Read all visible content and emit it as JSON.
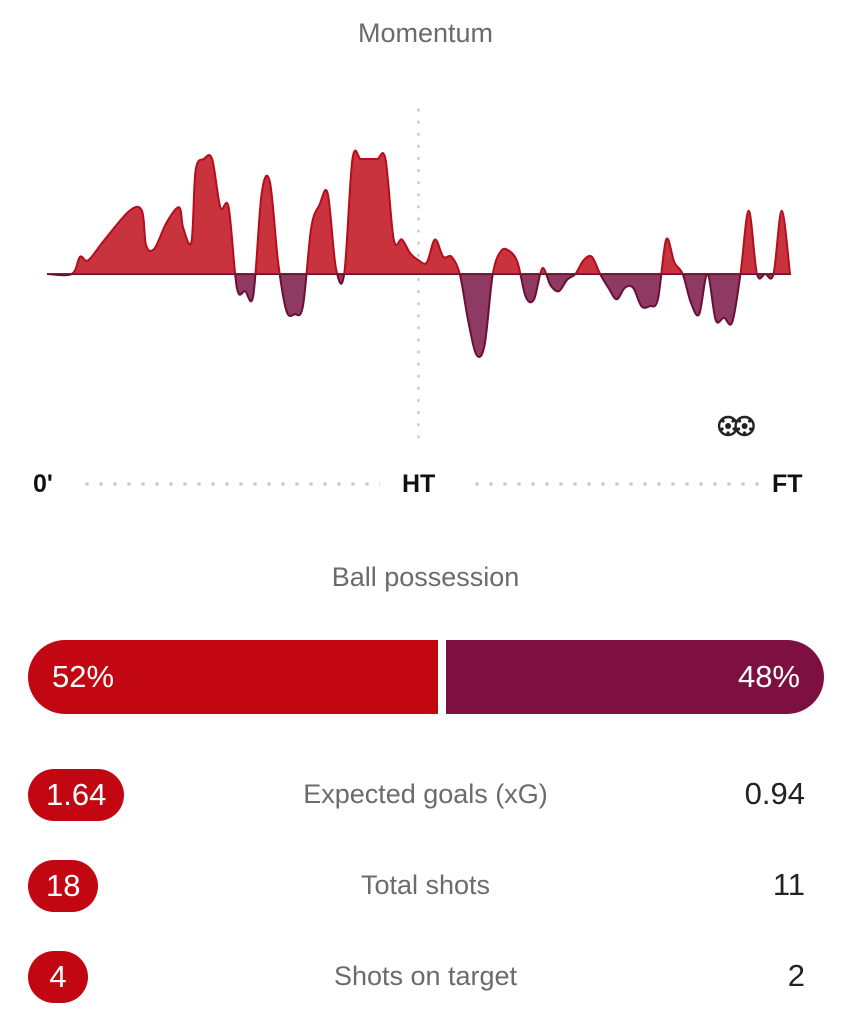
{
  "momentum": {
    "title": "Momentum",
    "axis": {
      "start": "0'",
      "half": "HT",
      "end": "FT"
    },
    "goal_icons": [
      "goal-ball-icon",
      "goal-ball-icon"
    ],
    "colors": {
      "home": "#c9333d",
      "away": "#8e3a63",
      "home_stroke": "#b50d1c",
      "away_stroke": "#6a1038"
    },
    "chart_data": {
      "type": "area",
      "xlabel": "",
      "ylabel": "",
      "x_range": [
        0,
        90
      ],
      "ylim": [
        -100,
        100
      ],
      "x": [
        0,
        3,
        4,
        5,
        7,
        10,
        11.5,
        12,
        13,
        14.5,
        16,
        16.5,
        17.5,
        18,
        19,
        20,
        21,
        22,
        23,
        24,
        25,
        26,
        27,
        28,
        29,
        30,
        31,
        32,
        33,
        34,
        35,
        36,
        37,
        38,
        39,
        40,
        41,
        42,
        43,
        44,
        45,
        46,
        47,
        48,
        49,
        50,
        51,
        52,
        53,
        54,
        55,
        56,
        57,
        58,
        59,
        60,
        61,
        62,
        63,
        64,
        65,
        66,
        67,
        68,
        69,
        70,
        71,
        72,
        73,
        74,
        75,
        76,
        77,
        78,
        79,
        80,
        81,
        82,
        83,
        84,
        85,
        86,
        87,
        88,
        89,
        90
      ],
      "values": [
        0,
        0,
        15,
        12,
        30,
        55,
        55,
        25,
        22,
        45,
        58,
        40,
        28,
        90,
        100,
        100,
        58,
        58,
        -12,
        -15,
        -18,
        70,
        80,
        10,
        -32,
        -35,
        -28,
        40,
        60,
        70,
        5,
        0,
        100,
        100,
        100,
        100,
        100,
        30,
        30,
        18,
        12,
        10,
        30,
        15,
        15,
        0,
        -40,
        -70,
        -62,
        0,
        20,
        20,
        10,
        -20,
        -22,
        5,
        -10,
        -15,
        -5,
        0,
        12,
        15,
        0,
        -12,
        -22,
        -12,
        -12,
        -28,
        -28,
        -22,
        30,
        10,
        0,
        -25,
        -35,
        0,
        -40,
        -38,
        -42,
        0,
        55,
        0,
        0,
        0,
        55,
        0
      ],
      "goal_minutes": [
        82.5,
        84.5
      ]
    }
  },
  "possession": {
    "title": "Ball possession",
    "home": "52%",
    "away": "48%",
    "home_value": 52,
    "away_value": 48,
    "colors": {
      "home": "#c20612",
      "away": "#7d1040"
    }
  },
  "stats": [
    {
      "label": "Expected goals (xG)",
      "home": "1.64",
      "away": "0.94"
    },
    {
      "label": "Total shots",
      "home": "18",
      "away": "11"
    },
    {
      "label": "Shots on target",
      "home": "4",
      "away": "2"
    }
  ]
}
